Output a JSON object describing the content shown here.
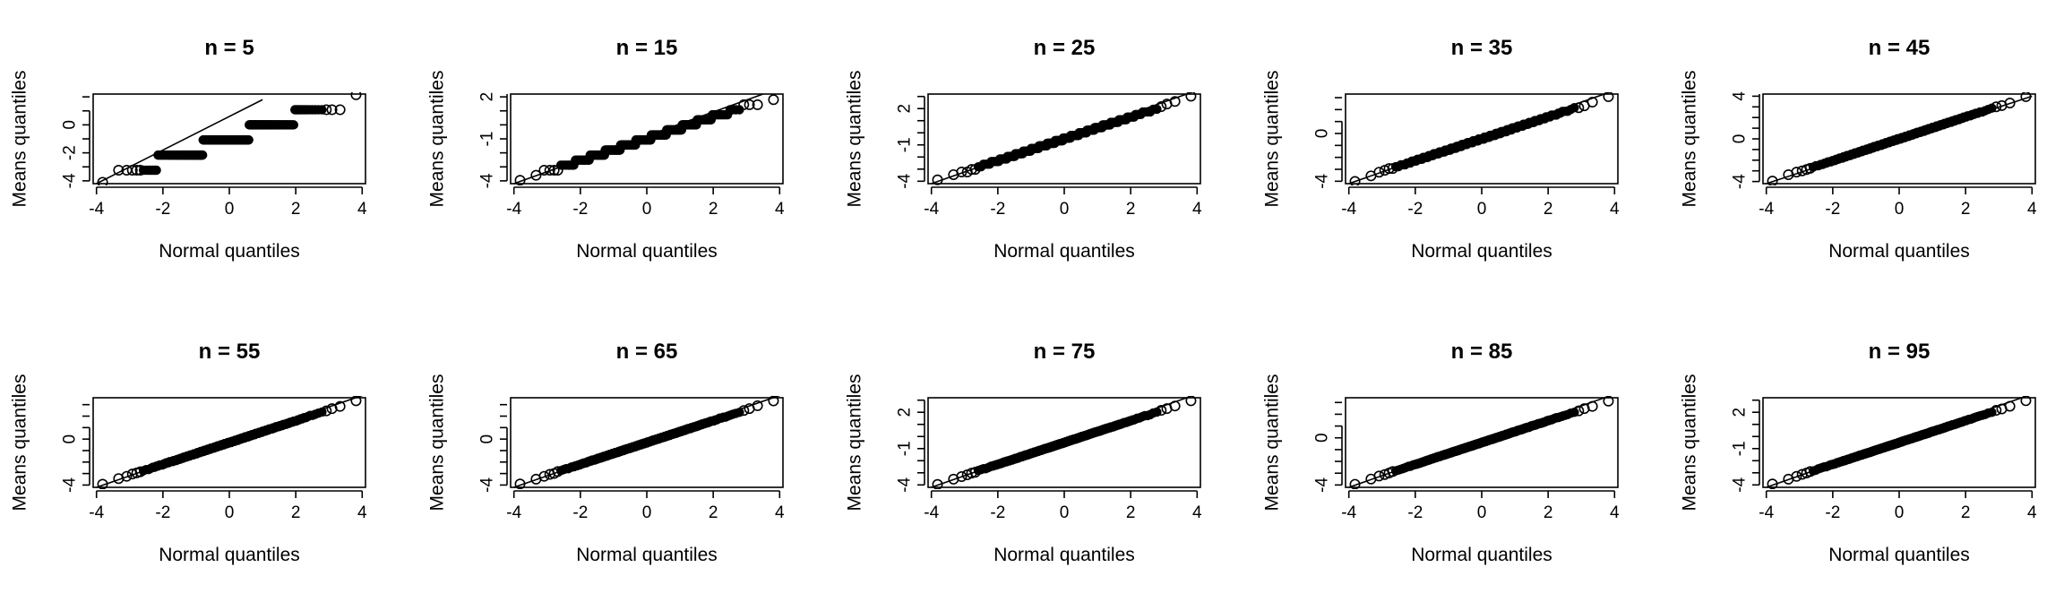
{
  "chart_data": [
    {
      "type": "scatter",
      "title": "n = 5",
      "n": 5,
      "xlabel": "Normal quantiles",
      "ylabel": "Means quantiles",
      "xlim": [
        -4.1,
        4.1
      ],
      "ylim": [
        -4.2,
        2.2
      ],
      "xticks": [
        "-4",
        "-2",
        "0",
        "2",
        "4"
      ],
      "yticks": [
        "-4",
        "-2",
        "0"
      ],
      "ytick_values": [
        -4,
        -2,
        0
      ],
      "reference_line": {
        "from": [
          -4,
          -4.2
        ],
        "to": [
          1,
          1.8
        ]
      }
    },
    {
      "type": "scatter",
      "title": "n = 15",
      "n": 15,
      "xlabel": "Normal quantiles",
      "ylabel": "Means quantiles",
      "xlim": [
        -4.1,
        4.1
      ],
      "ylim": [
        -4.2,
        2.2
      ],
      "xticks": [
        "-4",
        "-2",
        "0",
        "2",
        "4"
      ],
      "yticks": [
        "-4",
        "-1",
        "2"
      ],
      "ytick_values": [
        -4,
        -1,
        2
      ],
      "reference_line": {
        "from": [
          -4,
          -4.2
        ],
        "to": [
          3.5,
          2.2
        ]
      }
    },
    {
      "type": "scatter",
      "title": "n = 25",
      "n": 25,
      "xlabel": "Normal quantiles",
      "ylabel": "Means quantiles",
      "xlim": [
        -4.1,
        4.1
      ],
      "ylim": [
        -4.2,
        3.2
      ],
      "xticks": [
        "-4",
        "-2",
        "0",
        "2",
        "4"
      ],
      "yticks": [
        "-4",
        "-1",
        "2"
      ],
      "ytick_values": [
        -4,
        -1,
        2
      ],
      "reference_line": {
        "from": [
          -4,
          -4.2
        ],
        "to": [
          4,
          3.5
        ]
      }
    },
    {
      "type": "scatter",
      "title": "n = 35",
      "n": 35,
      "xlabel": "Normal quantiles",
      "ylabel": "Means quantiles",
      "xlim": [
        -4.1,
        4.1
      ],
      "ylim": [
        -4.2,
        3.3
      ],
      "xticks": [
        "-4",
        "-2",
        "0",
        "2",
        "4"
      ],
      "yticks": [
        "-4",
        "0"
      ],
      "ytick_values": [
        -4,
        0
      ],
      "reference_line": {
        "from": [
          -4,
          -4.2
        ],
        "to": [
          4,
          3.6
        ]
      }
    },
    {
      "type": "scatter",
      "title": "n = 45",
      "n": 45,
      "xlabel": "Normal quantiles",
      "ylabel": "Means quantiles",
      "xlim": [
        -4.1,
        4.1
      ],
      "ylim": [
        -4.2,
        4.2
      ],
      "xticks": [
        "-4",
        "-2",
        "0",
        "2",
        "4"
      ],
      "yticks": [
        "-4",
        "0",
        "4"
      ],
      "ytick_values": [
        -4,
        0,
        4
      ],
      "reference_line": {
        "from": [
          -4,
          -4.2
        ],
        "to": [
          4,
          4
        ]
      }
    },
    {
      "type": "scatter",
      "title": "n = 55",
      "n": 55,
      "xlabel": "Normal quantiles",
      "ylabel": "Means quantiles",
      "xlim": [
        -4.1,
        4.1
      ],
      "ylim": [
        -4.2,
        3.6
      ],
      "xticks": [
        "-4",
        "-2",
        "0",
        "2",
        "4"
      ],
      "yticks": [
        "-4",
        "0"
      ],
      "ytick_values": [
        -4,
        0
      ],
      "reference_line": {
        "from": [
          -4,
          -4.2
        ],
        "to": [
          4,
          3.8
        ]
      }
    },
    {
      "type": "scatter",
      "title": "n = 65",
      "n": 65,
      "xlabel": "Normal quantiles",
      "ylabel": "Means quantiles",
      "xlim": [
        -4.1,
        4.1
      ],
      "ylim": [
        -4.2,
        3.6
      ],
      "xticks": [
        "-4",
        "-2",
        "0",
        "2",
        "4"
      ],
      "yticks": [
        "-4",
        "0"
      ],
      "ytick_values": [
        -4,
        0
      ],
      "reference_line": {
        "from": [
          -4,
          -4.2
        ],
        "to": [
          4,
          3.8
        ]
      }
    },
    {
      "type": "scatter",
      "title": "n = 75",
      "n": 75,
      "xlabel": "Normal quantiles",
      "ylabel": "Means quantiles",
      "xlim": [
        -4.1,
        4.1
      ],
      "ylim": [
        -4.2,
        3.2
      ],
      "xticks": [
        "-4",
        "-2",
        "0",
        "2",
        "4"
      ],
      "yticks": [
        "-4",
        "-1",
        "2"
      ],
      "ytick_values": [
        -4,
        -1,
        2
      ],
      "reference_line": {
        "from": [
          -4,
          -4.2
        ],
        "to": [
          4,
          3.5
        ]
      }
    },
    {
      "type": "scatter",
      "title": "n = 85",
      "n": 85,
      "xlabel": "Normal quantiles",
      "ylabel": "Means quantiles",
      "xlim": [
        -4.1,
        4.1
      ],
      "ylim": [
        -4.2,
        3.4
      ],
      "xticks": [
        "-4",
        "-2",
        "0",
        "2",
        "4"
      ],
      "yticks": [
        "-4",
        "0"
      ],
      "ytick_values": [
        -4,
        0
      ],
      "reference_line": {
        "from": [
          -4,
          -4.2
        ],
        "to": [
          4,
          3.7
        ]
      }
    },
    {
      "type": "scatter",
      "title": "n = 95",
      "n": 95,
      "xlabel": "Normal quantiles",
      "ylabel": "Means quantiles",
      "xlim": [
        -4.1,
        4.1
      ],
      "ylim": [
        -4.2,
        3.2
      ],
      "xticks": [
        "-4",
        "-2",
        "0",
        "2",
        "4"
      ],
      "yticks": [
        "-4",
        "-1",
        "2"
      ],
      "ytick_values": [
        -4,
        -1,
        2
      ],
      "reference_line": {
        "from": [
          -4,
          -4.2
        ],
        "to": [
          4,
          3.5
        ]
      }
    }
  ]
}
